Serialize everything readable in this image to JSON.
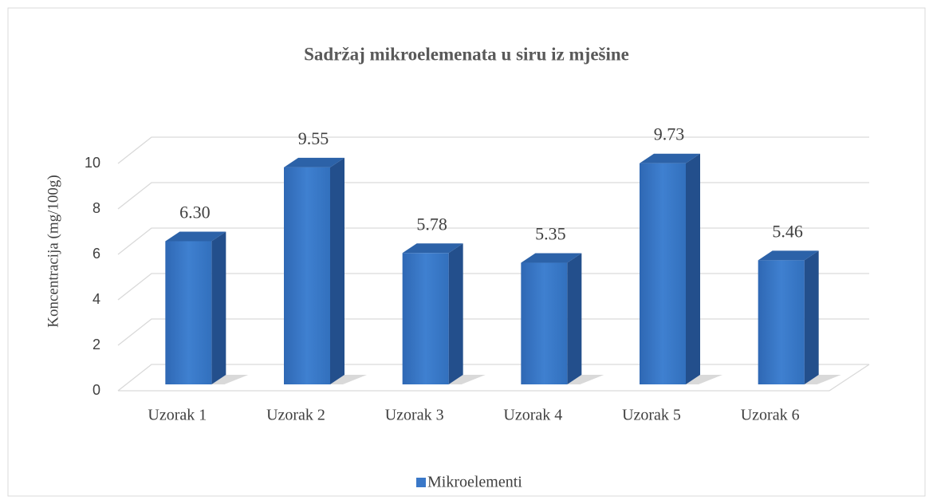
{
  "chart_data": {
    "type": "bar3d",
    "title": "Sadržaj mikroelemenata u siru iz mješine",
    "ylabel": "Koncentracija (mg/100g)",
    "categories": [
      "Uzorak 1",
      "Uzorak 2",
      "Uzorak 3",
      "Uzorak 4",
      "Uzorak 5",
      "Uzorak 6"
    ],
    "series": [
      {
        "name": "Mikroelementi",
        "color": "#3a78c8",
        "values": [
          6.3,
          9.55,
          5.78,
          5.35,
          9.73,
          5.46
        ],
        "value_labels": [
          "6.30",
          "9.55",
          "5.78",
          "5.35",
          "9.73",
          "5.46"
        ]
      }
    ],
    "ylim": [
      0,
      10
    ],
    "yticks": [
      0,
      2,
      4,
      6,
      8,
      10
    ],
    "grid": true,
    "legend": "bottom"
  }
}
